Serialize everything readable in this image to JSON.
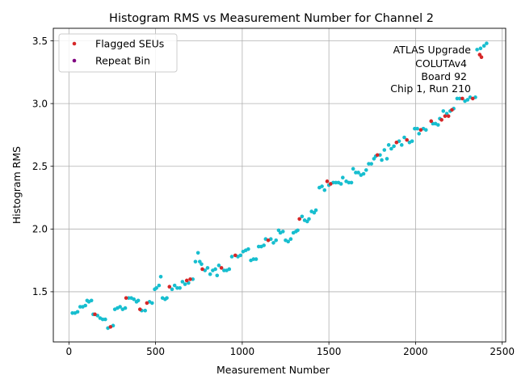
{
  "chart_data": {
    "type": "scatter",
    "title": "Histogram RMS vs Measurement Number for Channel 2",
    "xlabel": "Measurement Number",
    "ylabel": "Histogram RMS",
    "xlim": [
      -90,
      2520
    ],
    "ylim": [
      1.1,
      3.6
    ],
    "xticks": [
      0,
      500,
      1000,
      1500,
      2000,
      2500
    ],
    "yticks": [
      1.5,
      2.0,
      2.5,
      3.0,
      3.5
    ],
    "xtick_labels": [
      "0",
      "500",
      "1000",
      "1500",
      "2000",
      "2500"
    ],
    "ytick_labels": [
      "1.5",
      "2.0",
      "2.5",
      "3.0",
      "3.5"
    ],
    "grid": true,
    "legend_position": "top-left",
    "legend": [
      {
        "label": "Flagged SEUs",
        "color": "#d62728"
      },
      {
        "label": "Repeat Bin",
        "color": "#800080"
      }
    ],
    "annotation": [
      "ATLAS Upgrade",
      "COLUTAv4",
      "Board 92",
      "Chip 1, Run 210"
    ],
    "colors": {
      "base": "#17becf",
      "flagged": "#d62728",
      "repeat": "#800080"
    },
    "series": [
      {
        "name": "Flagged SEUs",
        "color": "#d62728",
        "points": [
          [
            150,
            1.32
          ],
          [
            240,
            1.22
          ],
          [
            330,
            1.45
          ],
          [
            410,
            1.36
          ],
          [
            450,
            1.41
          ],
          [
            580,
            1.54
          ],
          [
            680,
            1.59
          ],
          [
            700,
            1.6
          ],
          [
            770,
            1.68
          ],
          [
            880,
            1.69
          ],
          [
            960,
            1.79
          ],
          [
            1150,
            1.91
          ],
          [
            1330,
            2.08
          ],
          [
            1490,
            2.38
          ],
          [
            1510,
            2.36
          ],
          [
            1780,
            2.59
          ],
          [
            1890,
            2.69
          ],
          [
            1950,
            2.71
          ],
          [
            2030,
            2.79
          ],
          [
            2090,
            2.86
          ],
          [
            2150,
            2.87
          ],
          [
            2170,
            2.9
          ],
          [
            2190,
            2.9
          ],
          [
            2210,
            2.95
          ],
          [
            2270,
            3.04
          ],
          [
            2330,
            3.04
          ],
          [
            2370,
            3.39
          ],
          [
            2380,
            3.37
          ]
        ]
      },
      {
        "name": "Repeat Bin",
        "color": "#800080",
        "points": []
      },
      {
        "name": "",
        "color": "#17becf",
        "points": [
          [
            20,
            1.33
          ],
          [
            35,
            1.33
          ],
          [
            50,
            1.34
          ],
          [
            65,
            1.38
          ],
          [
            80,
            1.38
          ],
          [
            95,
            1.39
          ],
          [
            105,
            1.43
          ],
          [
            115,
            1.42
          ],
          [
            130,
            1.43
          ],
          [
            140,
            1.32
          ],
          [
            165,
            1.31
          ],
          [
            180,
            1.29
          ],
          [
            195,
            1.28
          ],
          [
            210,
            1.28
          ],
          [
            225,
            1.21
          ],
          [
            255,
            1.23
          ],
          [
            265,
            1.36
          ],
          [
            280,
            1.37
          ],
          [
            295,
            1.38
          ],
          [
            310,
            1.36
          ],
          [
            325,
            1.37
          ],
          [
            345,
            1.45
          ],
          [
            360,
            1.45
          ],
          [
            375,
            1.44
          ],
          [
            390,
            1.42
          ],
          [
            400,
            1.43
          ],
          [
            420,
            1.35
          ],
          [
            440,
            1.35
          ],
          [
            465,
            1.42
          ],
          [
            480,
            1.41
          ],
          [
            495,
            1.52
          ],
          [
            505,
            1.53
          ],
          [
            520,
            1.55
          ],
          [
            530,
            1.62
          ],
          [
            540,
            1.45
          ],
          [
            555,
            1.44
          ],
          [
            565,
            1.45
          ],
          [
            595,
            1.52
          ],
          [
            610,
            1.55
          ],
          [
            625,
            1.53
          ],
          [
            640,
            1.53
          ],
          [
            655,
            1.58
          ],
          [
            670,
            1.56
          ],
          [
            690,
            1.57
          ],
          [
            715,
            1.6
          ],
          [
            730,
            1.74
          ],
          [
            745,
            1.81
          ],
          [
            755,
            1.74
          ],
          [
            765,
            1.72
          ],
          [
            785,
            1.67
          ],
          [
            800,
            1.69
          ],
          [
            815,
            1.64
          ],
          [
            830,
            1.67
          ],
          [
            845,
            1.68
          ],
          [
            855,
            1.63
          ],
          [
            865,
            1.71
          ],
          [
            895,
            1.67
          ],
          [
            910,
            1.67
          ],
          [
            925,
            1.68
          ],
          [
            940,
            1.78
          ],
          [
            975,
            1.78
          ],
          [
            990,
            1.79
          ],
          [
            1005,
            1.82
          ],
          [
            1020,
            1.83
          ],
          [
            1035,
            1.84
          ],
          [
            1050,
            1.75
          ],
          [
            1065,
            1.76
          ],
          [
            1080,
            1.76
          ],
          [
            1095,
            1.86
          ],
          [
            1110,
            1.86
          ],
          [
            1125,
            1.87
          ],
          [
            1135,
            1.92
          ],
          [
            1165,
            1.92
          ],
          [
            1180,
            1.89
          ],
          [
            1195,
            1.91
          ],
          [
            1210,
            1.99
          ],
          [
            1220,
            1.97
          ],
          [
            1235,
            1.98
          ],
          [
            1250,
            1.91
          ],
          [
            1265,
            1.9
          ],
          [
            1280,
            1.92
          ],
          [
            1295,
            1.97
          ],
          [
            1310,
            1.98
          ],
          [
            1320,
            1.99
          ],
          [
            1345,
            2.1
          ],
          [
            1360,
            2.07
          ],
          [
            1375,
            2.06
          ],
          [
            1385,
            2.08
          ],
          [
            1400,
            2.14
          ],
          [
            1415,
            2.13
          ],
          [
            1425,
            2.15
          ],
          [
            1445,
            2.33
          ],
          [
            1460,
            2.34
          ],
          [
            1475,
            2.31
          ],
          [
            1500,
            2.35
          ],
          [
            1525,
            2.37
          ],
          [
            1540,
            2.37
          ],
          [
            1555,
            2.37
          ],
          [
            1570,
            2.36
          ],
          [
            1580,
            2.41
          ],
          [
            1600,
            2.38
          ],
          [
            1615,
            2.37
          ],
          [
            1630,
            2.37
          ],
          [
            1640,
            2.48
          ],
          [
            1655,
            2.45
          ],
          [
            1670,
            2.45
          ],
          [
            1685,
            2.43
          ],
          [
            1700,
            2.44
          ],
          [
            1715,
            2.47
          ],
          [
            1730,
            2.52
          ],
          [
            1745,
            2.52
          ],
          [
            1760,
            2.56
          ],
          [
            1770,
            2.58
          ],
          [
            1795,
            2.59
          ],
          [
            1805,
            2.55
          ],
          [
            1820,
            2.63
          ],
          [
            1835,
            2.56
          ],
          [
            1845,
            2.67
          ],
          [
            1860,
            2.64
          ],
          [
            1875,
            2.66
          ],
          [
            1905,
            2.7
          ],
          [
            1920,
            2.67
          ],
          [
            1935,
            2.73
          ],
          [
            1965,
            2.69
          ],
          [
            1980,
            2.7
          ],
          [
            1995,
            2.8
          ],
          [
            2010,
            2.8
          ],
          [
            2020,
            2.76
          ],
          [
            2045,
            2.8
          ],
          [
            2060,
            2.79
          ],
          [
            2100,
            2.84
          ],
          [
            2115,
            2.84
          ],
          [
            2130,
            2.83
          ],
          [
            2140,
            2.88
          ],
          [
            2160,
            2.94
          ],
          [
            2180,
            2.92
          ],
          [
            2200,
            2.94
          ],
          [
            2220,
            2.96
          ],
          [
            2240,
            3.04
          ],
          [
            2255,
            3.04
          ],
          [
            2285,
            3.02
          ],
          [
            2300,
            3.03
          ],
          [
            2315,
            3.05
          ],
          [
            2345,
            3.05
          ],
          [
            2355,
            3.43
          ],
          [
            2375,
            3.44
          ],
          [
            2395,
            3.46
          ],
          [
            2410,
            3.48
          ]
        ]
      }
    ]
  }
}
